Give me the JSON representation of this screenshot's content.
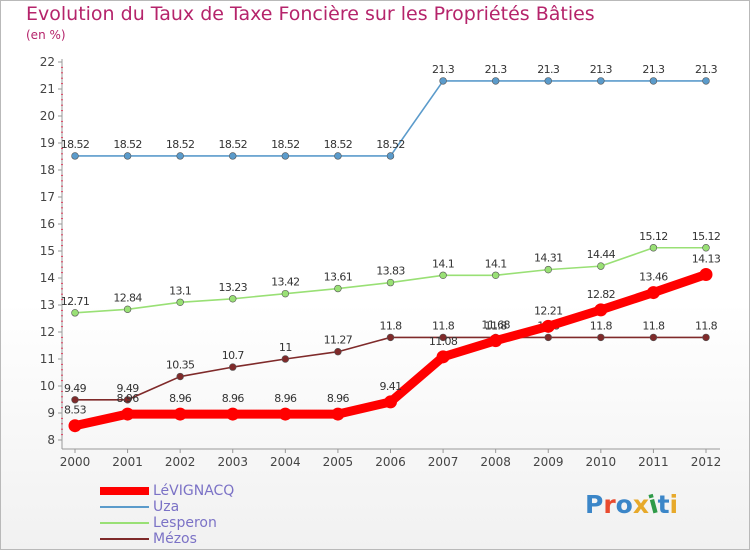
{
  "title": "Evolution du Taux de Taxe Foncière sur les Propriétés Bâties",
  "subtitle": "(en %)",
  "logo": {
    "text": "Proxiti",
    "colors": [
      "#3b86c8",
      "#e94b2f",
      "#3b86c8",
      "#e7a92a",
      "#2f9a48",
      "#3b86c8",
      "#e7a92a"
    ]
  },
  "chart_data": {
    "type": "line",
    "title": "Evolution du Taux de Taxe Foncière sur les Propriétés Bâties",
    "ylabel": "(en %)",
    "xlabel": "",
    "x": [
      "2000",
      "2001",
      "2002",
      "2003",
      "2004",
      "2005",
      "2006",
      "2007",
      "2008",
      "2009",
      "2010",
      "2011",
      "2012"
    ],
    "ylim": [
      8,
      22
    ],
    "yticks": [
      "8",
      "9",
      "10",
      "11",
      "12",
      "13",
      "14",
      "15",
      "16",
      "17",
      "18",
      "19",
      "20",
      "21",
      "22"
    ],
    "grid": false,
    "legend_position": "bottom-left",
    "series": [
      {
        "name": "LéVIGNACQ",
        "color": "#ff0000",
        "values": [
          8.53,
          8.96,
          8.96,
          8.96,
          8.96,
          8.96,
          9.41,
          11.08,
          11.68,
          12.21,
          12.82,
          13.46,
          14.13
        ],
        "labels": [
          "8.53",
          "8.96",
          "8.96",
          "8.96",
          "8.96",
          "8.96",
          "9.41",
          "11.08",
          "11.68",
          "12.21",
          "12.82",
          "13.46",
          "14.13"
        ]
      },
      {
        "name": "Uza",
        "color": "#5b9bcb",
        "values": [
          18.52,
          18.52,
          18.52,
          18.52,
          18.52,
          18.52,
          18.52,
          21.3,
          21.3,
          21.3,
          21.3,
          21.3,
          21.3
        ],
        "labels": [
          "18.52",
          "18.52",
          "18.52",
          "18.52",
          "18.52",
          "18.52",
          "18.52",
          "21.3",
          "21.3",
          "21.3",
          "21.3",
          "21.3",
          "21.3"
        ]
      },
      {
        "name": "Lesperon",
        "color": "#99e075",
        "values": [
          12.71,
          12.84,
          13.1,
          13.23,
          13.42,
          13.61,
          13.83,
          14.1,
          14.1,
          14.31,
          14.44,
          15.12,
          15.12
        ],
        "labels": [
          "12.71",
          "12.84",
          "13.1",
          "13.23",
          "13.42",
          "13.61",
          "13.83",
          "14.1",
          "14.1",
          "14.31",
          "14.44",
          "15.12",
          "15.12"
        ]
      },
      {
        "name": "Mézos",
        "color": "#7f2a2a",
        "values": [
          9.49,
          9.49,
          10.35,
          10.7,
          11,
          11.27,
          11.8,
          11.8,
          11.8,
          11.8,
          11.8,
          11.8,
          11.8
        ],
        "labels": [
          "9.49",
          "9.49",
          "10.35",
          "10.7",
          "11",
          "11.27",
          "11.8",
          "11.8",
          "11.8",
          "11.8",
          "11.8",
          "11.8",
          "11.8"
        ]
      }
    ]
  }
}
